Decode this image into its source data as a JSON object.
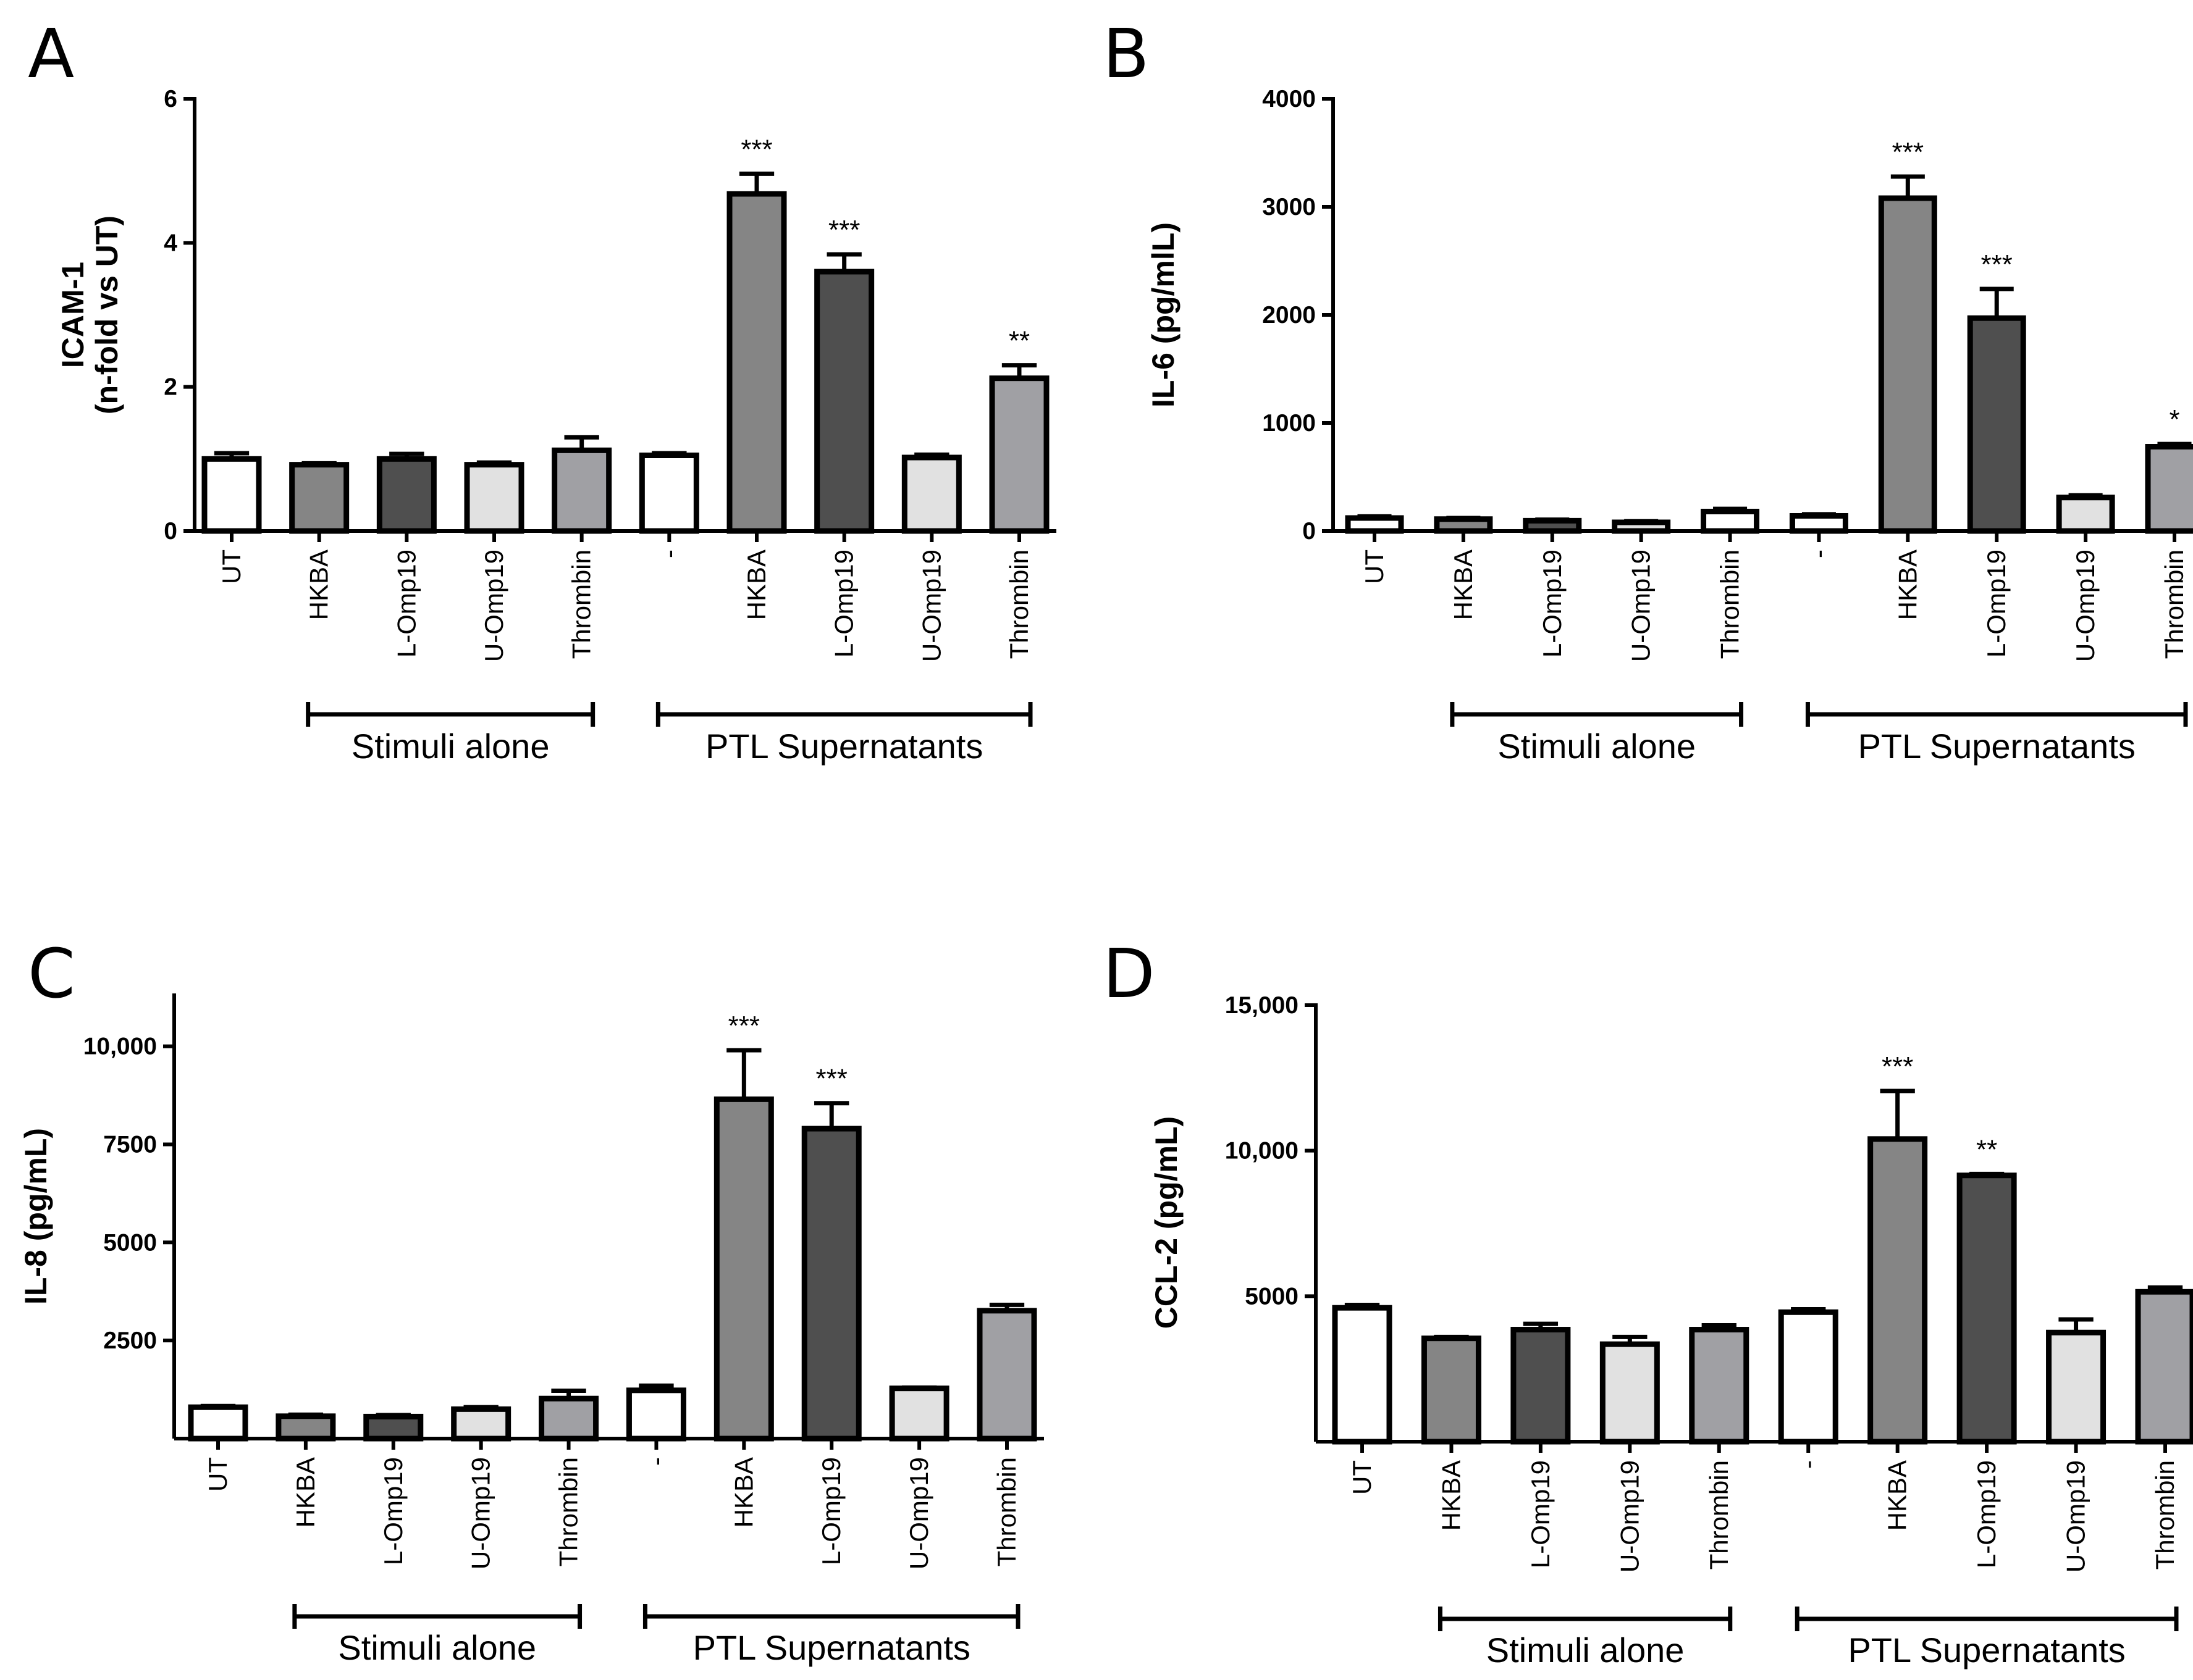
{
  "colors": {
    "white": "#ffffff",
    "medium_gray": "#858585",
    "dark_gray": "#4f4f4f",
    "light_gray": "#e1e1e1",
    "gray": "#a0a0a4"
  },
  "chart_data": [
    {
      "type": "bar",
      "panel": "A",
      "ylabel_lines": [
        "ICAM-1",
        "(n-fold vs UT)"
      ],
      "ylim": [
        0,
        6
      ],
      "yticks": [
        0,
        2,
        4,
        6
      ],
      "ytick_labels": [
        "0",
        "2",
        "4",
        "6"
      ],
      "categories": [
        "UT",
        "HKBA",
        "L-Omp19",
        "U-Omp19",
        "Thrombin",
        "-",
        "HKBA",
        "L-Omp19",
        "U-Omp19",
        "Thrombin"
      ],
      "values": [
        1.0,
        0.92,
        1.0,
        0.92,
        1.12,
        1.05,
        4.68,
        3.6,
        1.02,
        2.12
      ],
      "errors": [
        0.08,
        0.02,
        0.07,
        0.03,
        0.18,
        0.03,
        0.28,
        0.24,
        0.04,
        0.18
      ],
      "significance": [
        "",
        "",
        "",
        "",
        "",
        "",
        "***",
        "***",
        "",
        "**"
      ],
      "fills": [
        "white",
        "medium_gray",
        "dark_gray",
        "light_gray",
        "gray",
        "white",
        "medium_gray",
        "dark_gray",
        "light_gray",
        "gray"
      ],
      "groups": [
        {
          "label": "Stimuli alone",
          "from": 1,
          "to": 4
        },
        {
          "label": "PTL Supernatants",
          "from": 5,
          "to": 9
        }
      ]
    },
    {
      "type": "bar",
      "panel": "B",
      "ylabel_lines": [
        "IL-6 (pg/mlL)"
      ],
      "ylim": [
        0,
        4000
      ],
      "yticks": [
        0,
        1000,
        2000,
        3000,
        4000
      ],
      "ytick_labels": [
        "0",
        "1000",
        "2000",
        "3000",
        "4000"
      ],
      "categories": [
        "UT",
        "HKBA",
        "L-Omp19",
        "U-Omp19",
        "Thrombin",
        "-",
        "HKBA",
        "L-Omp19",
        "U-Omp19",
        "Thrombin"
      ],
      "values": [
        120,
        110,
        95,
        80,
        180,
        140,
        3080,
        1970,
        310,
        780
      ],
      "errors": [
        15,
        10,
        10,
        10,
        25,
        15,
        200,
        270,
        20,
        25
      ],
      "significance": [
        "",
        "",
        "",
        "",
        "",
        "",
        "***",
        "***",
        "",
        "*"
      ],
      "fills": [
        "white",
        "medium_gray",
        "dark_gray",
        "light_gray",
        "white",
        "white",
        "medium_gray",
        "dark_gray",
        "light_gray",
        "gray"
      ],
      "groups": [
        {
          "label": "Stimuli alone",
          "from": 1,
          "to": 4
        },
        {
          "label": "PTL Supernatants",
          "from": 5,
          "to": 9
        }
      ]
    },
    {
      "type": "bar",
      "panel": "C",
      "ylabel_lines": [
        "IL-8 (pg/mL)"
      ],
      "ylim": [
        0,
        11300
      ],
      "yticks": [
        2500,
        5000,
        7500,
        10000
      ],
      "ytick_labels": [
        "2500",
        "5000",
        "7500",
        "10,000"
      ],
      "categories": [
        "UT",
        "HKBA",
        "L-Omp19",
        "U-Omp19",
        "Thrombin",
        "-",
        "HKBA",
        "L-Omp19",
        "U-Omp19",
        "Thrombin"
      ],
      "values": [
        800,
        570,
        560,
        750,
        1020,
        1230,
        8650,
        7900,
        1280,
        3260
      ],
      "errors": [
        30,
        40,
        40,
        50,
        200,
        120,
        1250,
        650,
        20,
        150
      ],
      "significance": [
        "",
        "",
        "",
        "",
        "",
        "",
        "***",
        "***",
        "",
        ""
      ],
      "fills": [
        "white",
        "medium_gray",
        "dark_gray",
        "light_gray",
        "gray",
        "white",
        "medium_gray",
        "dark_gray",
        "light_gray",
        "gray"
      ],
      "groups": [
        {
          "label": "Stimuli alone",
          "from": 1,
          "to": 4
        },
        {
          "label": "PTL Supernatants",
          "from": 5,
          "to": 9
        }
      ]
    },
    {
      "type": "bar",
      "panel": "D",
      "ylabel_lines": [
        "CCL-2 (pg/mL)"
      ],
      "ylim": [
        0,
        15000
      ],
      "yticks": [
        5000,
        10000,
        15000
      ],
      "ytick_labels": [
        "5000",
        "10,000",
        "15,000"
      ],
      "categories": [
        "UT",
        "HKBA",
        "L-Omp19",
        "U-Omp19",
        "Thrombin",
        "-",
        "HKBA",
        "L-Omp19",
        "U-Omp19",
        "Thrombin"
      ],
      "values": [
        4600,
        3550,
        3850,
        3350,
        3850,
        4450,
        10400,
        9150,
        3750,
        5150
      ],
      "errors": [
        100,
        50,
        200,
        250,
        150,
        100,
        1650,
        50,
        450,
        150
      ],
      "significance": [
        "",
        "",
        "",
        "",
        "",
        "",
        "***",
        "**",
        "",
        ""
      ],
      "fills": [
        "white",
        "medium_gray",
        "dark_gray",
        "light_gray",
        "gray",
        "white",
        "medium_gray",
        "dark_gray",
        "light_gray",
        "gray"
      ],
      "groups": [
        {
          "label": "Stimuli alone",
          "from": 1,
          "to": 4
        },
        {
          "label": "PTL Supernatants",
          "from": 5,
          "to": 9
        }
      ]
    }
  ]
}
